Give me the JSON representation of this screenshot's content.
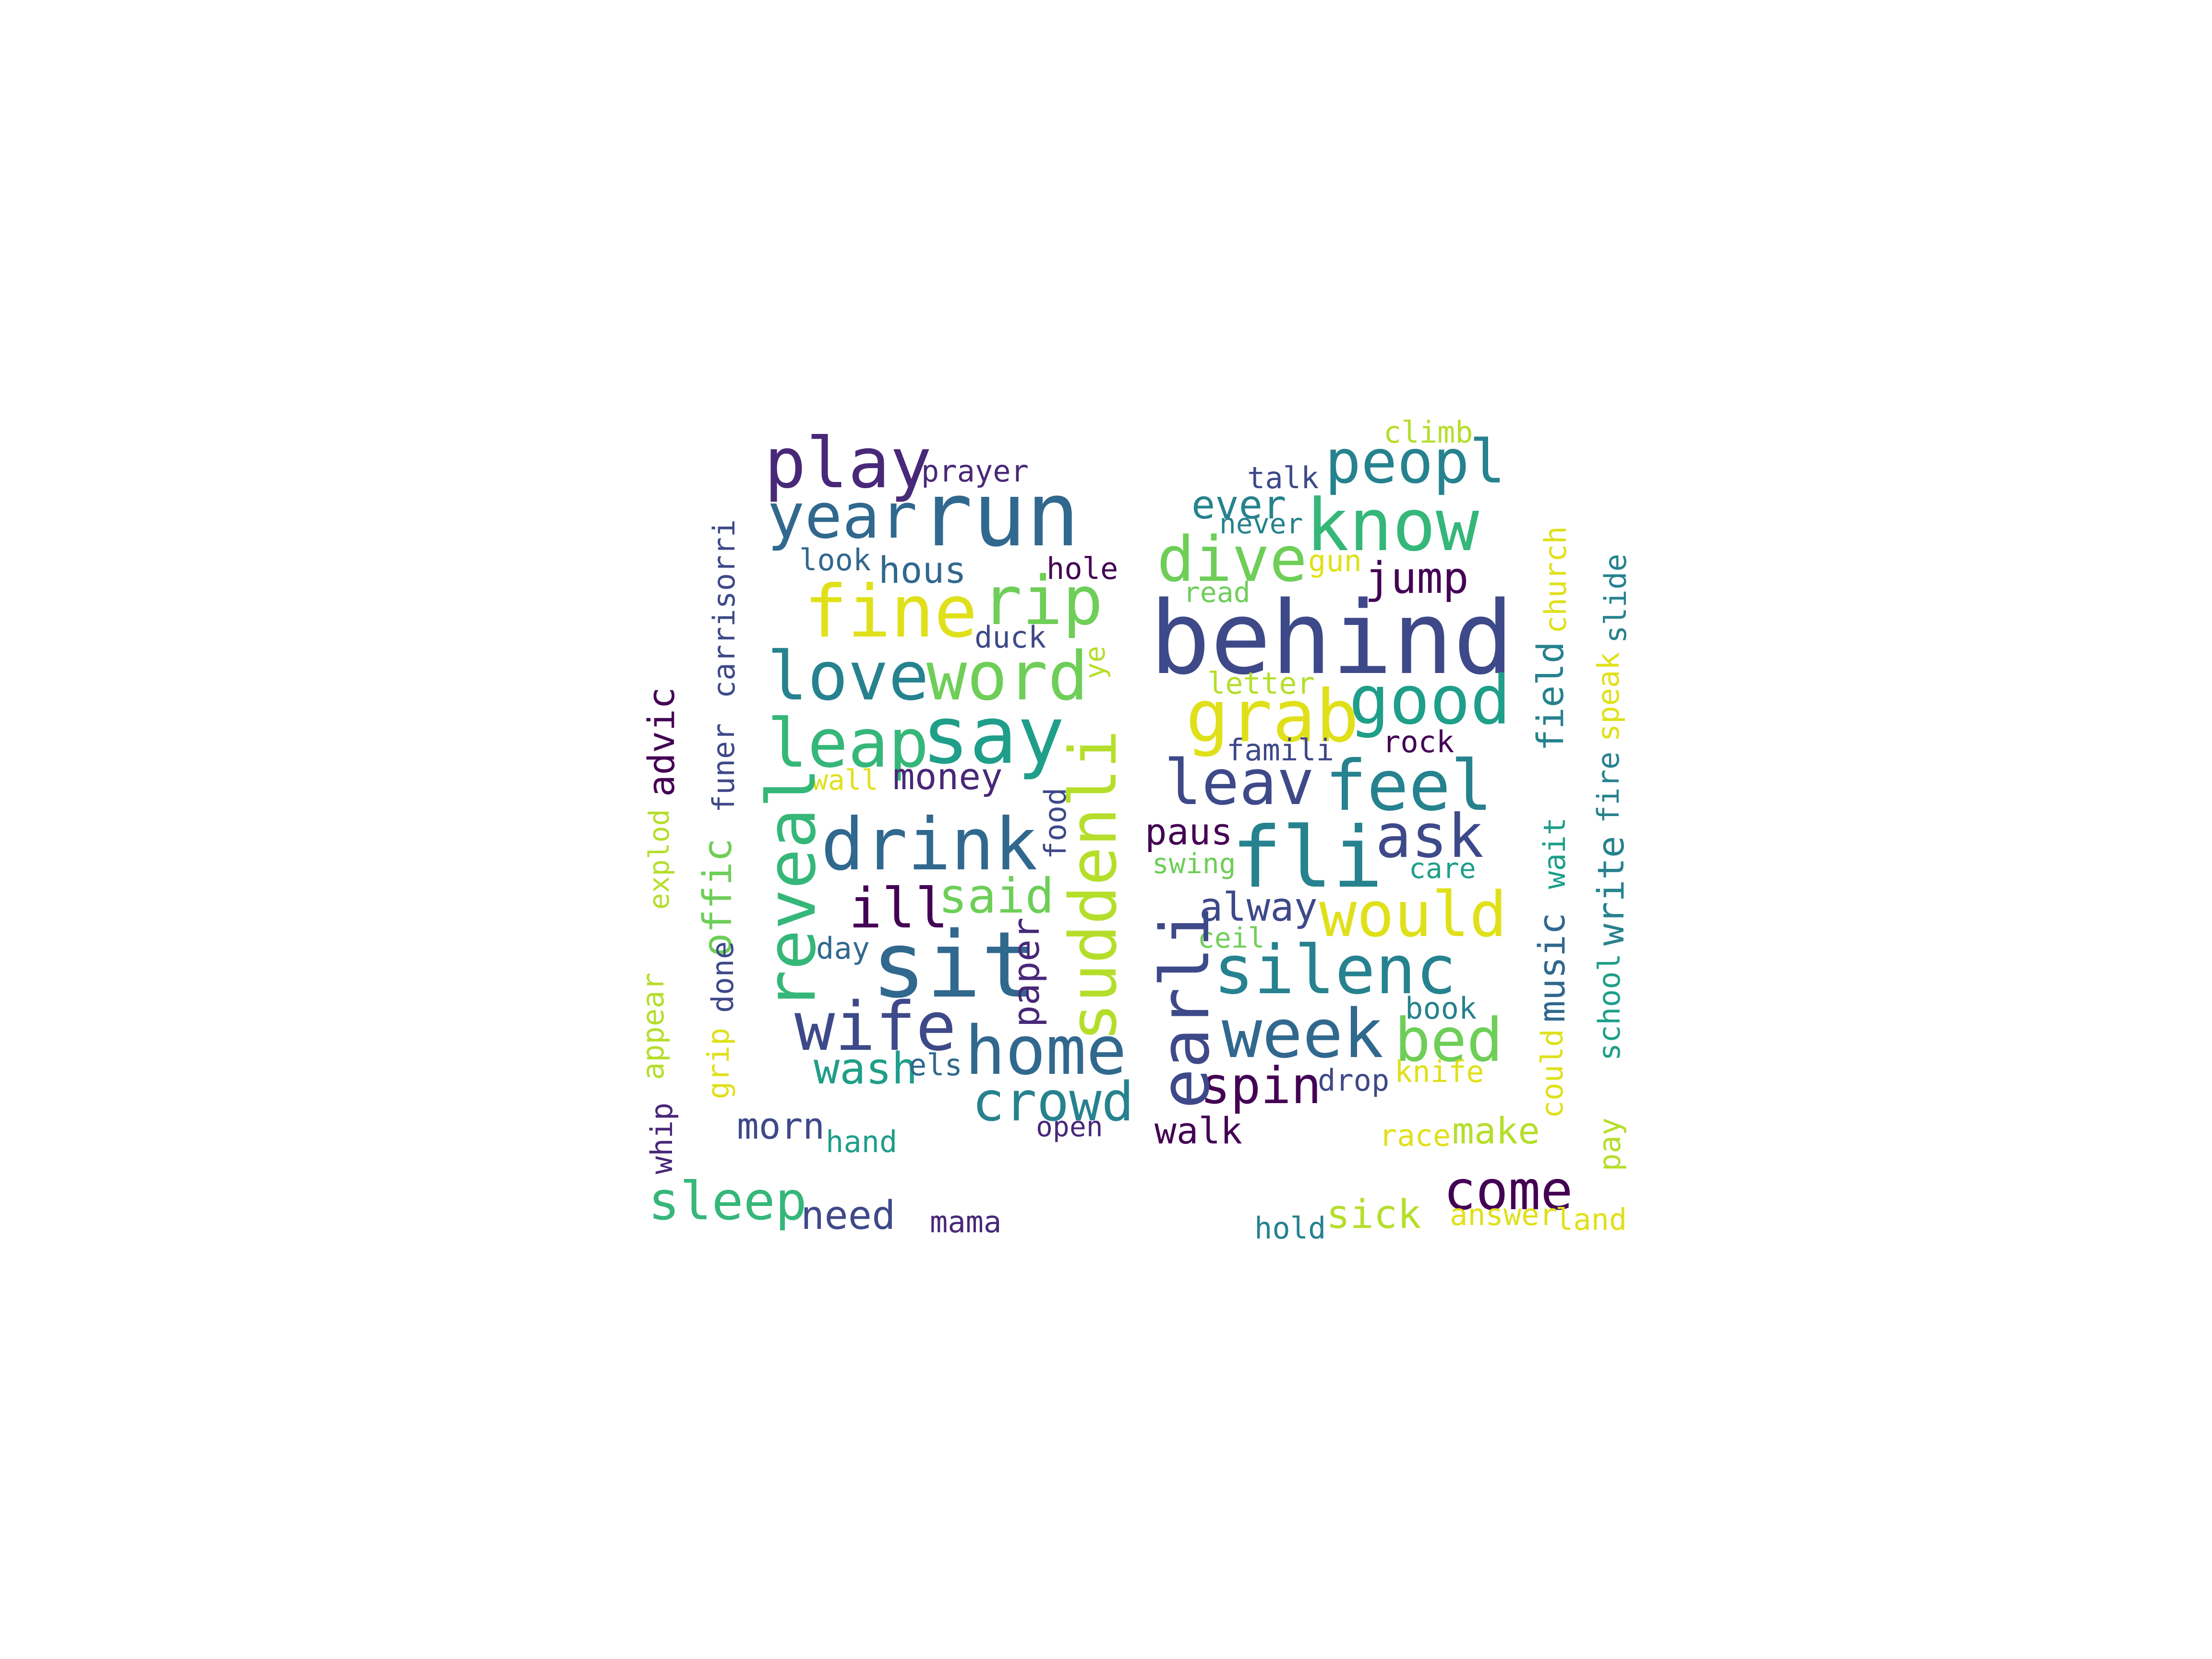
{
  "palette": {
    "deep_purple": "#440154",
    "indigo": "#482878",
    "slate_blue": "#3e4989",
    "steel_blue": "#31688e",
    "teal_blue": "#26828e",
    "teal": "#1f9e89",
    "green_teal": "#35b779",
    "green": "#6ece58",
    "lime": "#b5de2b",
    "yellow": "#e0e01a"
  },
  "words": [
    {
      "text": "behind",
      "color": "#3e4989"
    },
    {
      "text": "run",
      "color": "#31688e"
    },
    {
      "text": "know",
      "color": "#35b779"
    },
    {
      "text": "peopl",
      "color": "#26828e"
    },
    {
      "text": "play",
      "color": "#482878"
    },
    {
      "text": "year",
      "color": "#31688e"
    },
    {
      "text": "fine",
      "color": "#e0e01a"
    },
    {
      "text": "rip",
      "color": "#6ece58"
    },
    {
      "text": "love",
      "color": "#26828e"
    },
    {
      "text": "word",
      "color": "#6ece58"
    },
    {
      "text": "leap",
      "color": "#35b779"
    },
    {
      "text": "say",
      "color": "#1f9e89"
    },
    {
      "text": "drink",
      "color": "#31688e"
    },
    {
      "text": "sit",
      "color": "#31688e"
    },
    {
      "text": "wife",
      "color": "#3e4989"
    },
    {
      "text": "home",
      "color": "#31688e"
    },
    {
      "text": "crowd",
      "color": "#26828e"
    },
    {
      "text": "sleep",
      "color": "#35b779"
    },
    {
      "text": "need",
      "color": "#3e4989"
    },
    {
      "text": "dive",
      "color": "#6ece58"
    },
    {
      "text": "good",
      "color": "#1f9e89"
    },
    {
      "text": "grab",
      "color": "#e0e01a"
    },
    {
      "text": "leav",
      "color": "#3e4989"
    },
    {
      "text": "feel",
      "color": "#26828e"
    },
    {
      "text": "fli",
      "color": "#26828e"
    },
    {
      "text": "ask",
      "color": "#3e4989"
    },
    {
      "text": "would",
      "color": "#e0e01a"
    },
    {
      "text": "silenc",
      "color": "#26828e"
    },
    {
      "text": "week",
      "color": "#31688e"
    },
    {
      "text": "bed",
      "color": "#6ece58"
    },
    {
      "text": "spin",
      "color": "#440154"
    },
    {
      "text": "come",
      "color": "#440154"
    },
    {
      "text": "sick",
      "color": "#b5de2b"
    },
    {
      "text": "ill",
      "color": "#440154"
    },
    {
      "text": "said",
      "color": "#6ece58"
    },
    {
      "text": "money",
      "color": "#482878"
    },
    {
      "text": "hous",
      "color": "#31688e"
    },
    {
      "text": "look",
      "color": "#31688e"
    },
    {
      "text": "prayer",
      "color": "#482878"
    },
    {
      "text": "hole",
      "color": "#440154"
    },
    {
      "text": "duck",
      "color": "#3e4989"
    },
    {
      "text": "wall",
      "color": "#e0e01a"
    },
    {
      "text": "day",
      "color": "#31688e"
    },
    {
      "text": "wash",
      "color": "#1f9e89"
    },
    {
      "text": "els",
      "color": "#31688e"
    },
    {
      "text": "morn",
      "color": "#3e4989"
    },
    {
      "text": "hand",
      "color": "#1f9e89"
    },
    {
      "text": "mama",
      "color": "#482878"
    },
    {
      "text": "open",
      "color": "#482878"
    },
    {
      "text": "walk",
      "color": "#440154"
    },
    {
      "text": "paus",
      "color": "#440154"
    },
    {
      "text": "swing",
      "color": "#6ece58"
    },
    {
      "text": "alway",
      "color": "#3e4989"
    },
    {
      "text": "ceil",
      "color": "#6ece58"
    },
    {
      "text": "jump",
      "color": "#440154"
    },
    {
      "text": "ever",
      "color": "#26828e"
    },
    {
      "text": "never",
      "color": "#26828e"
    },
    {
      "text": "talk",
      "color": "#3e4989"
    },
    {
      "text": "climb",
      "color": "#b5de2b"
    },
    {
      "text": "gun",
      "color": "#e0e01a"
    },
    {
      "text": "read",
      "color": "#6ece58"
    },
    {
      "text": "letter",
      "color": "#b5de2b"
    },
    {
      "text": "famili",
      "color": "#3e4989"
    },
    {
      "text": "rock",
      "color": "#440154"
    },
    {
      "text": "care",
      "color": "#1f9e89"
    },
    {
      "text": "book",
      "color": "#26828e"
    },
    {
      "text": "drop",
      "color": "#3e4989"
    },
    {
      "text": "knife",
      "color": "#e0e01a"
    },
    {
      "text": "race",
      "color": "#e0e01a"
    },
    {
      "text": "make",
      "color": "#b5de2b"
    },
    {
      "text": "answer",
      "color": "#e0e01a"
    },
    {
      "text": "land",
      "color": "#e0e01a"
    },
    {
      "text": "hold",
      "color": "#26828e"
    },
    {
      "text": "reveal",
      "color": "#35b779"
    },
    {
      "text": "suddenli",
      "color": "#b5de2b"
    },
    {
      "text": "earli",
      "color": "#3e4989"
    },
    {
      "text": "paper",
      "color": "#482878"
    },
    {
      "text": "food",
      "color": "#3e4989"
    },
    {
      "text": "ye",
      "color": "#b5de2b"
    },
    {
      "text": "carrisorri",
      "color": "#3e4989"
    },
    {
      "text": "advic",
      "color": "#440154"
    },
    {
      "text": "funer",
      "color": "#3e4989"
    },
    {
      "text": "explod",
      "color": "#b5de2b"
    },
    {
      "text": "offic",
      "color": "#6ece58"
    },
    {
      "text": "done",
      "color": "#3e4989"
    },
    {
      "text": "appear",
      "color": "#b5de2b"
    },
    {
      "text": "grip",
      "color": "#e0e01a"
    },
    {
      "text": "whip",
      "color": "#482878"
    },
    {
      "text": "field",
      "color": "#26828e"
    },
    {
      "text": "church",
      "color": "#e0e01a"
    },
    {
      "text": "speak",
      "color": "#e0e01a"
    },
    {
      "text": "slide",
      "color": "#26828e"
    },
    {
      "text": "fire",
      "color": "#26828e"
    },
    {
      "text": "write",
      "color": "#26828e"
    },
    {
      "text": "wait",
      "color": "#1f9e89"
    },
    {
      "text": "music",
      "color": "#31688e"
    },
    {
      "text": "school",
      "color": "#1f9e89"
    },
    {
      "text": "could",
      "color": "#e0e01a"
    },
    {
      "text": "pay",
      "color": "#b5de2b"
    }
  ]
}
